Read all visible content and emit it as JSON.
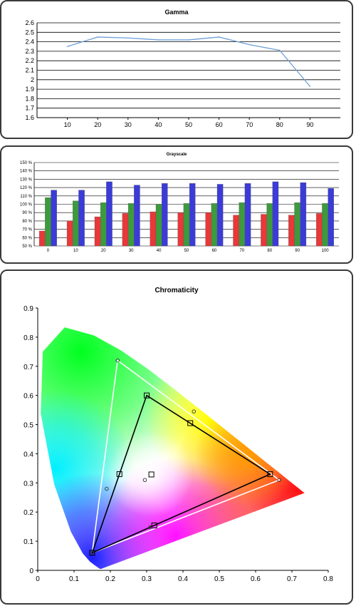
{
  "chart_data": [
    {
      "type": "line",
      "title": "Gamma",
      "x": [
        10,
        20,
        30,
        40,
        50,
        60,
        70,
        80,
        90
      ],
      "y": [
        2.35,
        2.45,
        2.44,
        2.42,
        2.42,
        2.45,
        2.37,
        2.31,
        1.93
      ],
      "ylim": [
        1.6,
        2.6
      ],
      "yticks": [
        "2.6",
        "2.5",
        "2.4",
        "2.3",
        "2.2",
        "2.1",
        "2",
        "1.9",
        "1.8",
        "1.7",
        "1.6"
      ],
      "xticks": [
        "10",
        "20",
        "30",
        "40",
        "50",
        "60",
        "70",
        "80",
        "90"
      ],
      "grid": true,
      "colors": {
        "line": "#6fa0d8"
      }
    },
    {
      "type": "bar",
      "title": "Grayscale",
      "categories": [
        "0",
        "10",
        "20",
        "30",
        "40",
        "50",
        "60",
        "70",
        "80",
        "90",
        "100"
      ],
      "series": [
        {
          "values": [
            68,
            80,
            85,
            89,
            91,
            90,
            90,
            87,
            88,
            87,
            89
          ]
        },
        {
          "values": [
            108,
            104,
            102,
            101,
            100,
            101,
            101,
            102,
            101,
            102,
            101
          ]
        },
        {
          "values": [
            117,
            117,
            127,
            123,
            125,
            125,
            124,
            125,
            127,
            126,
            119
          ]
        }
      ],
      "ylim": [
        50,
        150
      ],
      "yticks": [
        "150 %",
        "140 %",
        "130 %",
        "120 %",
        "110 %",
        "100 %",
        "90 %",
        "80 %",
        "70 %",
        "60 %",
        "50 %"
      ],
      "grid": true,
      "colors": {
        "red": "#e8383a",
        "green": "#3d9a3d",
        "blue": "#3b3bd8"
      }
    },
    {
      "type": "scatter",
      "title": "Chromaticity",
      "xlim": [
        0,
        0.8
      ],
      "ylim": [
        0,
        0.9
      ],
      "xticks": [
        "0",
        "0.1",
        "0.2",
        "0.3",
        "0.4",
        "0.5",
        "0.6",
        "0.7",
        "0.8"
      ],
      "yticks": [
        "0",
        "0.1",
        "0.2",
        "0.3",
        "0.4",
        "0.5",
        "0.6",
        "0.7",
        "0.8",
        "0.9"
      ],
      "reference_gamut": [
        [
          0.64,
          0.33
        ],
        [
          0.3,
          0.6
        ],
        [
          0.15,
          0.06
        ]
      ],
      "measured_gamut": [
        [
          0.665,
          0.31
        ],
        [
          0.22,
          0.72
        ],
        [
          0.15,
          0.06
        ]
      ],
      "reference_points": [
        [
          0.64,
          0.33
        ],
        [
          0.3,
          0.6
        ],
        [
          0.15,
          0.06
        ],
        [
          0.225,
          0.33
        ],
        [
          0.42,
          0.505
        ],
        [
          0.313,
          0.329
        ],
        [
          0.321,
          0.154
        ]
      ],
      "measured_points": [
        [
          0.665,
          0.31
        ],
        [
          0.22,
          0.72
        ],
        [
          0.15,
          0.06
        ],
        [
          0.19,
          0.28
        ],
        [
          0.43,
          0.545
        ],
        [
          0.295,
          0.31
        ],
        [
          0.31,
          0.148
        ]
      ],
      "colors": {
        "reference": "#000000",
        "measured": "#ffffff"
      }
    }
  ]
}
